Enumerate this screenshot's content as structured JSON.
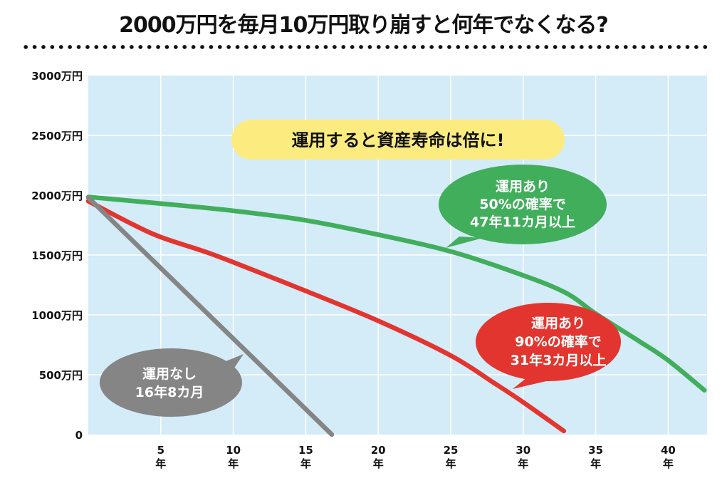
{
  "page": {
    "title": "2000万円を毎月10万円取り崩すと何年でなくなる?"
  },
  "colors": {
    "plot_background": "#d4ebf8",
    "grid": "#ffffff",
    "green": "#41ae5c",
    "red": "#e3352f",
    "gray": "#858585",
    "highlight": "#fcec80"
  },
  "chart_data": {
    "type": "line",
    "title": "2000万円を毎月10万円取り崩すと何年でなくなる?",
    "xlabel": "年",
    "ylabel": "万円",
    "xlim": [
      0,
      43
    ],
    "ylim": [
      0,
      3000
    ],
    "grid": true,
    "x_ticks": [
      {
        "value": 5,
        "label": "5",
        "unit": "年"
      },
      {
        "value": 10,
        "label": "10",
        "unit": "年"
      },
      {
        "value": 15,
        "label": "15",
        "unit": "年"
      },
      {
        "value": 20,
        "label": "20",
        "unit": "年"
      },
      {
        "value": 25,
        "label": "25",
        "unit": "年"
      },
      {
        "value": 30,
        "label": "30",
        "unit": "年"
      },
      {
        "value": 35,
        "label": "35",
        "unit": "年"
      },
      {
        "value": 40,
        "label": "40",
        "unit": "年"
      }
    ],
    "y_ticks": [
      {
        "value": 3000,
        "label": "3000万円"
      },
      {
        "value": 2500,
        "label": "2500万円"
      },
      {
        "value": 2000,
        "label": "2000万円"
      },
      {
        "value": 1500,
        "label": "1500万円"
      },
      {
        "value": 1000,
        "label": "1000万円"
      },
      {
        "value": 500,
        "label": "500万円"
      },
      {
        "value": 0,
        "label": "0"
      }
    ],
    "series": [
      {
        "name": "運用あり 50%の確率で 47年11カ月以上",
        "color_key": "green",
        "points": [
          [
            0,
            1985
          ],
          [
            5,
            1930
          ],
          [
            10,
            1870
          ],
          [
            15,
            1790
          ],
          [
            20,
            1670
          ],
          [
            25,
            1530
          ],
          [
            30,
            1330
          ],
          [
            33,
            1180
          ],
          [
            35,
            1010
          ],
          [
            38,
            780
          ],
          [
            40,
            620
          ],
          [
            42.5,
            370
          ]
        ]
      },
      {
        "name": "運用あり 90%の確率で 31年3カ月以上",
        "color_key": "red",
        "points": [
          [
            0,
            1950
          ],
          [
            3,
            1760
          ],
          [
            5,
            1650
          ],
          [
            8,
            1530
          ],
          [
            10,
            1440
          ],
          [
            15,
            1200
          ],
          [
            20,
            950
          ],
          [
            25,
            660
          ],
          [
            28,
            430
          ],
          [
            30,
            270
          ],
          [
            32.8,
            30
          ]
        ]
      },
      {
        "name": "運用なし 16年8カ月",
        "color_key": "gray",
        "points": [
          [
            0,
            1980
          ],
          [
            16.8,
            0
          ]
        ]
      }
    ],
    "annotations": {
      "headline": "運用すると資産寿命は倍に!",
      "callouts": [
        {
          "series": "green",
          "lines": [
            "運用あり",
            "50%の確率で",
            "47年11カ月以上"
          ]
        },
        {
          "series": "red",
          "lines": [
            "運用あり",
            "90%の確率で",
            "31年3カ月以上"
          ]
        },
        {
          "series": "gray",
          "lines": [
            "運用なし",
            "16年8カ月"
          ]
        }
      ]
    }
  }
}
